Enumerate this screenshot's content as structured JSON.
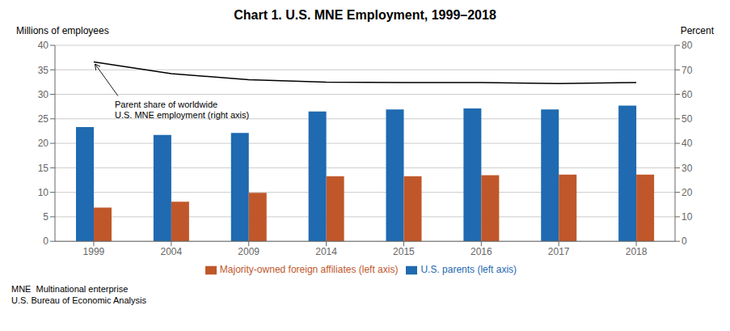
{
  "chart_data": {
    "type": "bar",
    "title": "Chart 1. U.S. MNE Employment, 1999–2018",
    "y_label": "Millions of employees",
    "y2_label": "Percent",
    "categories": [
      "1999",
      "2004",
      "2009",
      "2014",
      "2015",
      "2016",
      "2017",
      "2018"
    ],
    "series": [
      {
        "name": "U.S. parents (left axis)",
        "type": "bar",
        "color": "#1f6ab0",
        "values": [
          23.3,
          21.7,
          22.1,
          26.5,
          26.9,
          27.1,
          26.9,
          27.7
        ]
      },
      {
        "name": "Majority-owned foreign affiliates (left axis)",
        "type": "bar",
        "color": "#c0572a",
        "values": [
          6.9,
          8.1,
          9.9,
          13.3,
          13.3,
          13.5,
          13.6,
          13.6
        ]
      },
      {
        "type": "line",
        "axis": "y2",
        "color": "#000000",
        "values": [
          73.2,
          68.4,
          66.0,
          65.0,
          64.8,
          64.8,
          64.4,
          64.8
        ],
        "annotation": "Parent share of worldwide\nU.S. MNE employment (right axis)"
      }
    ],
    "ylim": [
      0,
      40
    ],
    "yticks": [
      0,
      5,
      10,
      15,
      20,
      25,
      30,
      35,
      40
    ],
    "y2lim": [
      0,
      80
    ],
    "y2ticks": [
      0,
      10,
      20,
      30,
      40,
      50,
      60,
      70,
      80
    ],
    "grid": true,
    "legend": "bottom",
    "footnotes": [
      "MNE  Multinational enterprise",
      "U.S. Bureau of Economic Analysis"
    ]
  }
}
